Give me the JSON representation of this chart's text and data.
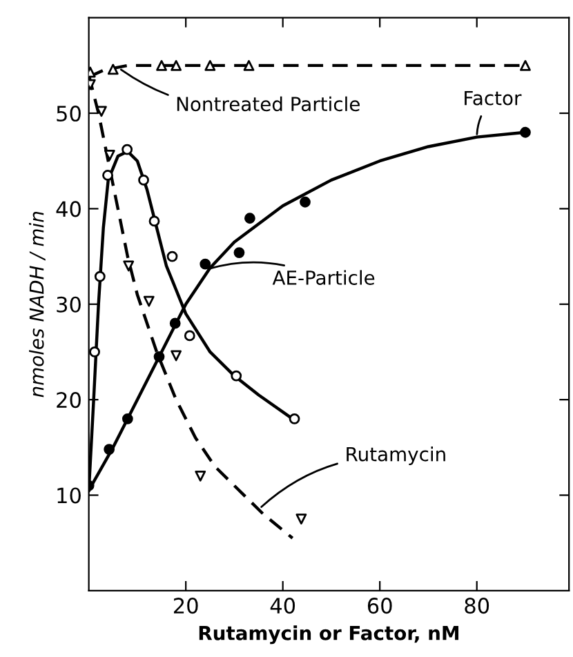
{
  "chart_data": {
    "type": "scatter",
    "xlabel": "Rutamycin or Factor, nM",
    "ylabel": "nmoles NADH / min",
    "xlim": [
      0,
      99
    ],
    "ylim": [
      0,
      60
    ],
    "xticks": [
      20,
      40,
      60,
      80
    ],
    "yticks": [
      10,
      20,
      30,
      40,
      50
    ],
    "grid": false,
    "legend": false,
    "series": [
      {
        "type": "line",
        "line_style": "dashed",
        "color": "#000000",
        "x": [
          0,
          3,
          8,
          20,
          90
        ],
        "values": [
          53.8,
          54.5,
          55,
          55,
          55
        ]
      },
      {
        "marker": "triangle",
        "color": "#ffffff",
        "x": [
          0.3,
          5,
          15,
          18,
          25,
          33,
          90
        ],
        "values": [
          54.3,
          54.6,
          55,
          55,
          55,
          55,
          55
        ]
      },
      {
        "type": "line",
        "line_style": "solid",
        "color": "#000000",
        "x": [
          0,
          5,
          10,
          15,
          20,
          25,
          30,
          40,
          50,
          60,
          70,
          80,
          90
        ],
        "values": [
          10.5,
          15,
          20,
          25,
          30,
          33.8,
          36.5,
          40.3,
          43,
          45,
          46.5,
          47.5,
          48
        ]
      },
      {
        "marker": "circle",
        "color": "#000000",
        "x": [
          0,
          4.2,
          8,
          14.5,
          17.8,
          24,
          31,
          33.2,
          44.6,
          90
        ],
        "values": [
          11,
          14.8,
          18,
          24.5,
          28,
          34.2,
          35.4,
          39,
          40.7,
          48
        ]
      },
      {
        "type": "line",
        "line_style": "solid",
        "color": "#000000",
        "x": [
          0,
          1,
          2,
          3,
          4,
          6,
          8,
          10,
          12,
          14,
          16,
          20,
          25,
          30,
          35,
          42
        ],
        "values": [
          10.5,
          20,
          30,
          38,
          43,
          45.5,
          46,
          45,
          42,
          38,
          34,
          29,
          25,
          22.5,
          20.5,
          18
        ]
      },
      {
        "marker": "circle",
        "color": "#ffffff",
        "x": [
          1.2,
          2.3,
          3.9,
          7.9,
          11.3,
          13.5,
          17.2,
          20.8,
          30.4,
          42.4
        ],
        "values": [
          25,
          32.9,
          43.5,
          46.2,
          43,
          38.7,
          35,
          26.7,
          22.5,
          18
        ]
      },
      {
        "type": "line",
        "line_style": "dashed",
        "color": "#000000",
        "x": [
          0,
          2,
          4,
          6,
          8,
          10,
          14,
          18,
          22,
          26,
          30,
          36,
          42
        ],
        "values": [
          54,
          50,
          45,
          40,
          35,
          31,
          25,
          20,
          16,
          13,
          11,
          8,
          5.5
        ]
      },
      {
        "marker": "triangle_down",
        "color": "#ffffff",
        "x": [
          0.3,
          2.6,
          4.3,
          8.2,
          12.4,
          18,
          23,
          43.8
        ],
        "values": [
          53,
          50.2,
          45.6,
          34,
          30.3,
          24.6,
          12,
          7.5
        ]
      }
    ],
    "annotations": [
      {
        "text": "Nontreated Particle",
        "x": 6,
        "y": 54.8
      },
      {
        "text": "Factor",
        "x": 80,
        "y": 47.4
      },
      {
        "text": "AE-Particle",
        "x": 24,
        "y": 33.6
      },
      {
        "text": "Rutamycin",
        "x": 35,
        "y": 8.5
      }
    ]
  }
}
